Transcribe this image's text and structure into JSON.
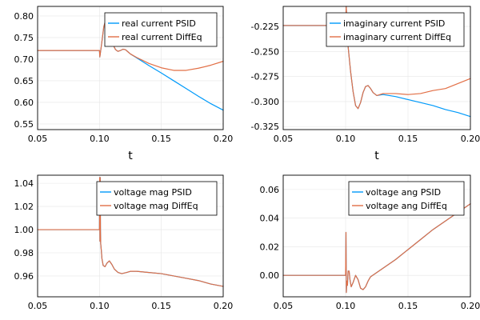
{
  "colors": {
    "psid": "#009AFA",
    "diffeq": "#E26F46"
  },
  "chart_data": [
    {
      "type": "line",
      "xlabel": "t",
      "xlim": [
        0.05,
        0.2
      ],
      "ylim": [
        0.537,
        0.822
      ],
      "xticks": [
        0.05,
        0.1,
        0.15,
        0.2
      ],
      "xtick_labels": [
        "0.05",
        "0.10",
        "0.15",
        "0.20"
      ],
      "yticks": [
        0.55,
        0.6,
        0.65,
        0.7,
        0.75,
        0.8
      ],
      "ytick_labels": [
        "0.55",
        "0.60",
        "0.65",
        "0.70",
        "0.75",
        "0.80"
      ],
      "legend": "top-right",
      "grid": true,
      "series": [
        {
          "name": "real current PSID",
          "x": [
            0.05,
            0.1,
            0.1003,
            0.1015,
            0.1035,
            0.105,
            0.107,
            0.109,
            0.111,
            0.113,
            0.115,
            0.117,
            0.119,
            0.121,
            0.123,
            0.125,
            0.13,
            0.14,
            0.15,
            0.16,
            0.17,
            0.18,
            0.19,
            0.2
          ],
          "y": [
            0.72,
            0.72,
            0.705,
            0.73,
            0.775,
            0.79,
            0.78,
            0.755,
            0.733,
            0.722,
            0.718,
            0.72,
            0.723,
            0.722,
            0.717,
            0.712,
            0.703,
            0.685,
            0.668,
            0.65,
            0.632,
            0.614,
            0.597,
            0.582
          ]
        },
        {
          "name": "real current DiffEq",
          "x": [
            0.05,
            0.1,
            0.1003,
            0.1015,
            0.1035,
            0.105,
            0.107,
            0.109,
            0.111,
            0.113,
            0.115,
            0.117,
            0.119,
            0.121,
            0.123,
            0.125,
            0.13,
            0.14,
            0.15,
            0.16,
            0.17,
            0.18,
            0.19,
            0.2
          ],
          "y": [
            0.72,
            0.72,
            0.705,
            0.73,
            0.775,
            0.79,
            0.78,
            0.755,
            0.733,
            0.722,
            0.718,
            0.72,
            0.723,
            0.722,
            0.717,
            0.712,
            0.704,
            0.69,
            0.68,
            0.674,
            0.674,
            0.679,
            0.686,
            0.695
          ]
        }
      ]
    },
    {
      "type": "line",
      "xlabel": "t",
      "xlim": [
        0.05,
        0.2
      ],
      "ylim": [
        -0.328,
        -0.205
      ],
      "xticks": [
        0.05,
        0.1,
        0.15,
        0.2
      ],
      "xtick_labels": [
        "0.05",
        "0.10",
        "0.15",
        "0.20"
      ],
      "yticks": [
        -0.325,
        -0.3,
        -0.275,
        -0.25,
        -0.225
      ],
      "ytick_labels": [
        "-0.325",
        "-0.300",
        "-0.275",
        "-0.250",
        "-0.225"
      ],
      "legend": "top-right",
      "grid": true,
      "series": [
        {
          "name": "imaginary current PSID",
          "x": [
            0.05,
            0.1,
            0.1005,
            0.102,
            0.104,
            0.106,
            0.108,
            0.11,
            0.112,
            0.114,
            0.116,
            0.118,
            0.12,
            0.122,
            0.125,
            0.13,
            0.14,
            0.15,
            0.16,
            0.17,
            0.18,
            0.19,
            0.2
          ],
          "y": [
            -0.224,
            -0.224,
            -0.205,
            -0.245,
            -0.27,
            -0.29,
            -0.304,
            -0.307,
            -0.301,
            -0.291,
            -0.285,
            -0.284,
            -0.287,
            -0.291,
            -0.294,
            -0.293,
            -0.295,
            -0.298,
            -0.301,
            -0.304,
            -0.308,
            -0.311,
            -0.315
          ]
        },
        {
          "name": "imaginary current DiffEq",
          "x": [
            0.05,
            0.1,
            0.1005,
            0.102,
            0.104,
            0.106,
            0.108,
            0.11,
            0.112,
            0.114,
            0.116,
            0.118,
            0.12,
            0.122,
            0.125,
            0.13,
            0.14,
            0.15,
            0.16,
            0.17,
            0.18,
            0.19,
            0.2
          ],
          "y": [
            -0.224,
            -0.224,
            -0.205,
            -0.245,
            -0.27,
            -0.29,
            -0.304,
            -0.307,
            -0.301,
            -0.291,
            -0.285,
            -0.284,
            -0.287,
            -0.291,
            -0.294,
            -0.292,
            -0.292,
            -0.293,
            -0.292,
            -0.289,
            -0.287,
            -0.282,
            -0.277
          ]
        }
      ]
    },
    {
      "type": "line",
      "xlabel": "",
      "xlim": [
        0.05,
        0.2
      ],
      "ylim": [
        0.942,
        1.047
      ],
      "xticks": [
        0.05,
        0.1,
        0.15,
        0.2
      ],
      "xtick_labels": [
        "0.05",
        "0.10",
        "0.15",
        "0.20"
      ],
      "yticks": [
        0.96,
        0.98,
        1.0,
        1.02,
        1.04
      ],
      "ytick_labels": [
        "0.96",
        "0.98",
        "1.00",
        "1.02",
        "1.04"
      ],
      "legend": "top-right",
      "grid": true,
      "series": [
        {
          "name": "voltage mag PSID",
          "x": [
            0.05,
            0.1,
            0.1002,
            0.1004,
            0.1006,
            0.1008,
            0.101,
            0.1015,
            0.102,
            0.103,
            0.1045,
            0.106,
            0.108,
            0.11,
            0.112,
            0.115,
            0.118,
            0.122,
            0.125,
            0.13,
            0.14,
            0.15,
            0.16,
            0.17,
            0.18,
            0.19,
            0.2
          ],
          "y": [
            1.0,
            1.0,
            1.045,
            0.99,
            1.045,
            1.0,
            0.988,
            0.982,
            0.975,
            0.969,
            0.968,
            0.971,
            0.973,
            0.97,
            0.966,
            0.963,
            0.962,
            0.963,
            0.964,
            0.964,
            0.963,
            0.962,
            0.96,
            0.958,
            0.956,
            0.953,
            0.951
          ]
        },
        {
          "name": "voltage mag DiffEq",
          "x": [
            0.05,
            0.1,
            0.1002,
            0.1004,
            0.1006,
            0.1008,
            0.101,
            0.1015,
            0.102,
            0.103,
            0.1045,
            0.106,
            0.108,
            0.11,
            0.112,
            0.115,
            0.118,
            0.122,
            0.125,
            0.13,
            0.14,
            0.15,
            0.16,
            0.17,
            0.18,
            0.19,
            0.2
          ],
          "y": [
            1.0,
            1.0,
            1.045,
            0.99,
            1.045,
            1.0,
            0.988,
            0.982,
            0.975,
            0.969,
            0.968,
            0.971,
            0.973,
            0.97,
            0.966,
            0.963,
            0.962,
            0.963,
            0.964,
            0.964,
            0.963,
            0.962,
            0.96,
            0.958,
            0.956,
            0.953,
            0.951
          ]
        }
      ]
    },
    {
      "type": "line",
      "xlabel": "",
      "xlim": [
        0.05,
        0.2
      ],
      "ylim": [
        -0.015,
        0.07
      ],
      "xticks": [
        0.05,
        0.1,
        0.15,
        0.2
      ],
      "xtick_labels": [
        "0.05",
        "0.10",
        "0.15",
        "0.20"
      ],
      "yticks": [
        0.0,
        0.02,
        0.04,
        0.06
      ],
      "ytick_labels": [
        "0.00",
        "0.02",
        "0.04",
        "0.06"
      ],
      "legend": "top-right",
      "grid": true,
      "series": [
        {
          "name": "voltage ang PSID",
          "x": [
            0.05,
            0.1,
            0.1003,
            0.1006,
            0.101,
            0.1015,
            0.102,
            0.1028,
            0.1035,
            0.1045,
            0.106,
            0.108,
            0.11,
            0.112,
            0.114,
            0.116,
            0.118,
            0.12,
            0.125,
            0.13,
            0.14,
            0.15,
            0.16,
            0.17,
            0.18,
            0.19,
            0.2
          ],
          "y": [
            0.0,
            0.0,
            0.03,
            -0.012,
            -0.004,
            -0.007,
            0.003,
            0.003,
            -0.003,
            -0.008,
            -0.005,
            0.0,
            -0.003,
            -0.009,
            -0.01,
            -0.008,
            -0.004,
            -0.001,
            0.002,
            0.005,
            0.011,
            0.018,
            0.025,
            0.032,
            0.038,
            0.044,
            0.05
          ]
        },
        {
          "name": "voltage ang DiffEq",
          "x": [
            0.05,
            0.1,
            0.1003,
            0.1006,
            0.101,
            0.1015,
            0.102,
            0.1028,
            0.1035,
            0.1045,
            0.106,
            0.108,
            0.11,
            0.112,
            0.114,
            0.116,
            0.118,
            0.12,
            0.125,
            0.13,
            0.14,
            0.15,
            0.16,
            0.17,
            0.18,
            0.19,
            0.2
          ],
          "y": [
            0.0,
            0.0,
            0.03,
            -0.012,
            -0.004,
            -0.007,
            0.003,
            0.003,
            -0.003,
            -0.008,
            -0.005,
            0.0,
            -0.003,
            -0.009,
            -0.01,
            -0.008,
            -0.004,
            -0.001,
            0.002,
            0.005,
            0.011,
            0.018,
            0.025,
            0.032,
            0.038,
            0.044,
            0.05
          ]
        }
      ]
    }
  ]
}
